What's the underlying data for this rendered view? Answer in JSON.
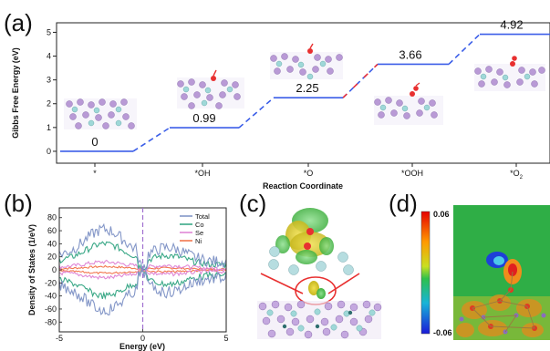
{
  "chart_data": [
    {
      "panel": "(a)",
      "type": "line",
      "xlabel": "Reaction Coordinate",
      "ylabel": "Gibbs Free Energy (eV)",
      "ylim": [
        -0.5,
        5.4
      ],
      "yticks": [
        "0",
        "1",
        "2",
        "3",
        "4",
        "5"
      ],
      "steps": [
        {
          "label": "*",
          "value": 0,
          "value_label": "0"
        },
        {
          "label": "*OH",
          "value": 0.99,
          "value_label": "0.99"
        },
        {
          "label": "*O",
          "value": 2.25,
          "value_label": "2.25"
        },
        {
          "label": "*OOH",
          "value": 3.66,
          "value_label": "3.66"
        },
        {
          "label": "*O2",
          "label_main": "*O",
          "label_sub": "2",
          "value": 4.92,
          "value_label": "4.92"
        }
      ],
      "colors": {
        "level": "#3b5ee8",
        "rate_limiting": "#e8323c"
      }
    },
    {
      "panel": "(b)",
      "type": "line",
      "xlabel": "Energy (eV)",
      "ylabel": "Density of States (1/eV)",
      "xlim": [
        -5,
        5
      ],
      "ylim": [
        -95,
        95
      ],
      "xticks": [
        "-5",
        "0",
        "5"
      ],
      "yticks": [
        "80",
        "60",
        "40",
        "20",
        "0",
        "-20",
        "-40",
        "-60",
        "-80"
      ],
      "legend_position": "top-right",
      "series": [
        {
          "name": "Total",
          "color": "#8497c8"
        },
        {
          "name": "Co",
          "color": "#3aa887"
        },
        {
          "name": "Se",
          "color": "#e087d6"
        },
        {
          "name": "Ni",
          "color": "#f2774f"
        }
      ]
    },
    {
      "panel": "(c)",
      "type": "other"
    },
    {
      "panel": "(d)",
      "type": "heatmap",
      "colorbar_max": "0.06",
      "colorbar_min": "-0.06"
    }
  ]
}
